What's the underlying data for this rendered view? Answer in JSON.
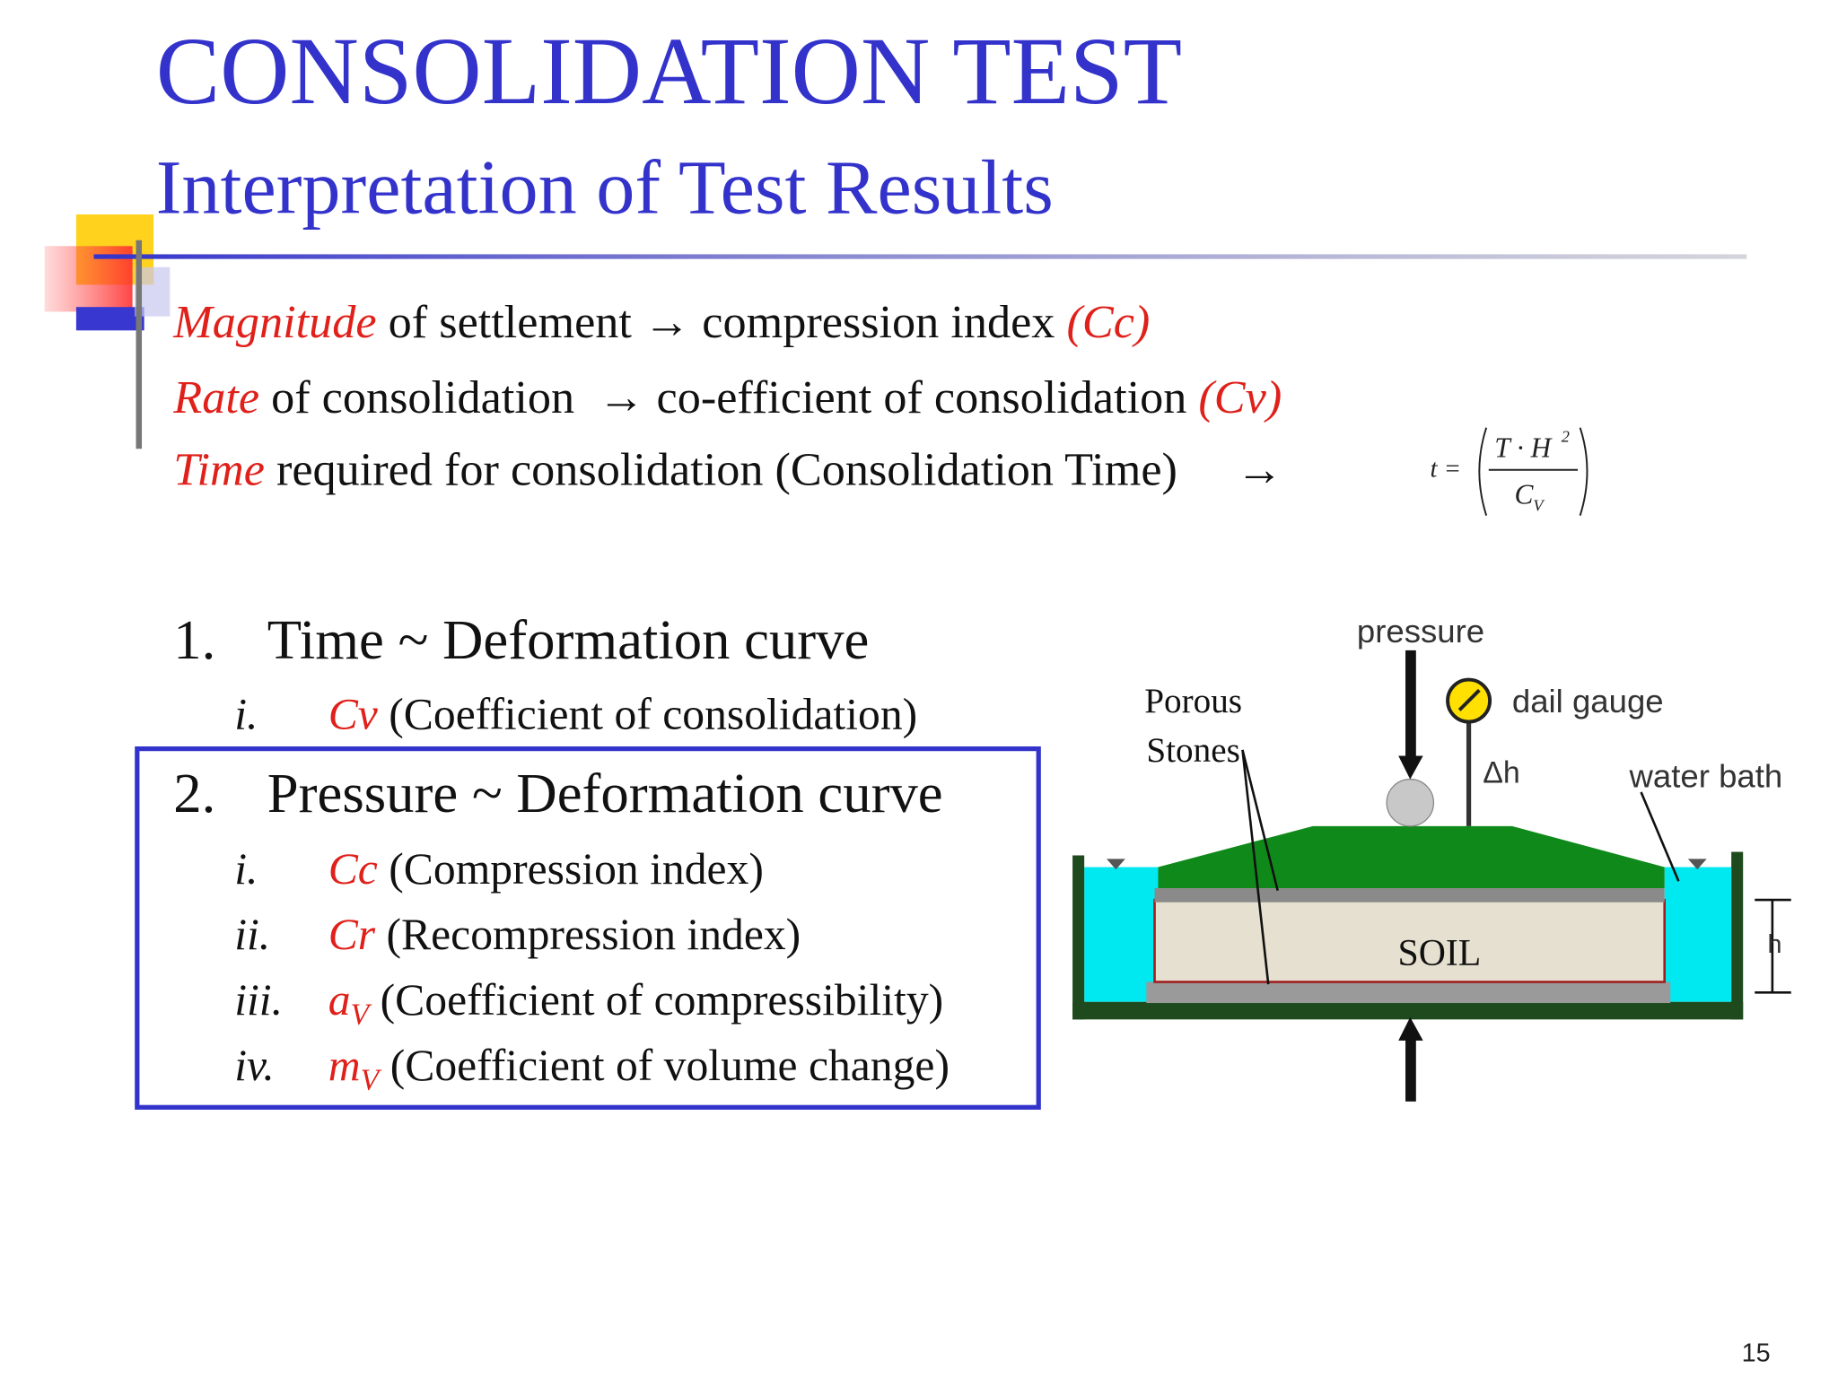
{
  "header": {
    "title": "CONSOLIDATION TEST",
    "subtitle": "Interpretation of Test Results"
  },
  "bullets": [
    {
      "term": "Magnitude",
      "text": " of settlement → compression index ",
      "symbol": "(Cc)"
    },
    {
      "term": "Rate",
      "text": " of consolidation  → co-efficient of consolidation ",
      "symbol": "(Cv)"
    },
    {
      "term": "Time",
      "text": " required for consolidation (Consolidation Time)     →"
    }
  ],
  "formula": {
    "lhs": "t =",
    "numerator": "T · H",
    "exponent": "2",
    "denominator": "C",
    "subscript": "V"
  },
  "sections": [
    {
      "number": "1.",
      "title": "Time ~ Deformation curve",
      "items": [
        {
          "numeral": "i.",
          "symbol": "Cv",
          "text": " (Coefficient of consolidation)"
        }
      ]
    },
    {
      "number": "2.",
      "title": "Pressure ~ Deformation curve",
      "items": [
        {
          "numeral": "i.",
          "symbol": "Cc",
          "text": " (Compression index)"
        },
        {
          "numeral": "ii.",
          "symbol": "Cr",
          "text": " (Recompression index)"
        },
        {
          "numeral": "iii.",
          "symbol": "a",
          "subscript": "V",
          "text": " (Coefficient of compressibility)"
        },
        {
          "numeral": "iv.",
          "symbol": "m",
          "subscript": "V",
          "text": " (Coefficient of volume change)"
        }
      ]
    }
  ],
  "diagram": {
    "pressure": "pressure",
    "gauge": "dail gauge",
    "delta_h": "Δh",
    "water_bath": "water bath",
    "porous_stones": [
      "Porous",
      "Stones"
    ],
    "soil": "SOIL",
    "height": "h"
  },
  "page_number": "15"
}
